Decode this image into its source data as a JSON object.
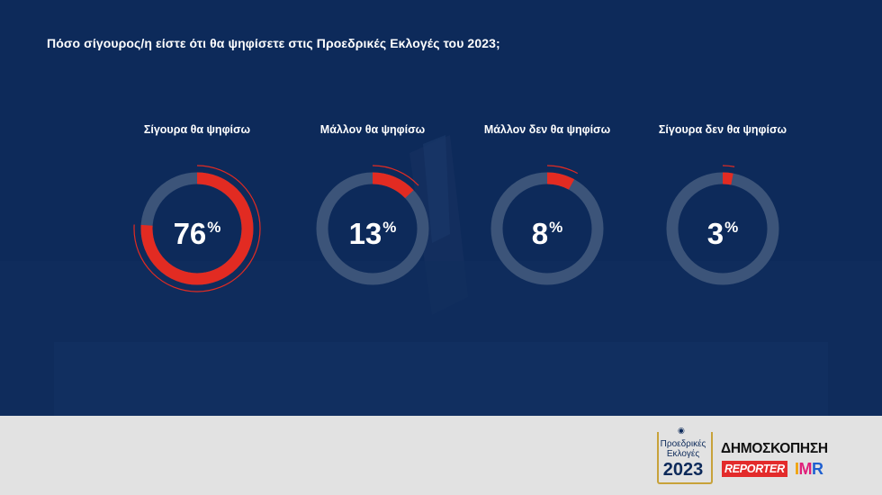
{
  "chart_data": {
    "type": "donut",
    "title": "Πόσο σίγουρος/η είστε ότι θα ψηφίσετε στις Προεδρικές Εκλογές του 2023;",
    "categories": [
      "Σίγουρα θα ψηφίσω",
      "Μάλλον θα ψηφίσω",
      "Μάλλον δεν θα ψηφίσω",
      "Σίγουρα δεν θα ψηφίσω"
    ],
    "values": [
      76,
      13,
      8,
      3
    ],
    "unit": "%",
    "colors": {
      "fill": "#e22b22",
      "track": "#3c5479",
      "background": "#0d2a5a"
    }
  },
  "footer": {
    "elections_logo": {
      "line1": "Προεδρικές",
      "line2": "Εκλογές",
      "line3": "2023"
    },
    "survey_logo": {
      "heading": "ΔΗΜΟΣΚΟΠΗΣΗ",
      "reporter": "REPORTER",
      "imr_1": "I",
      "imr_2": "M",
      "imr_3": "R"
    }
  }
}
